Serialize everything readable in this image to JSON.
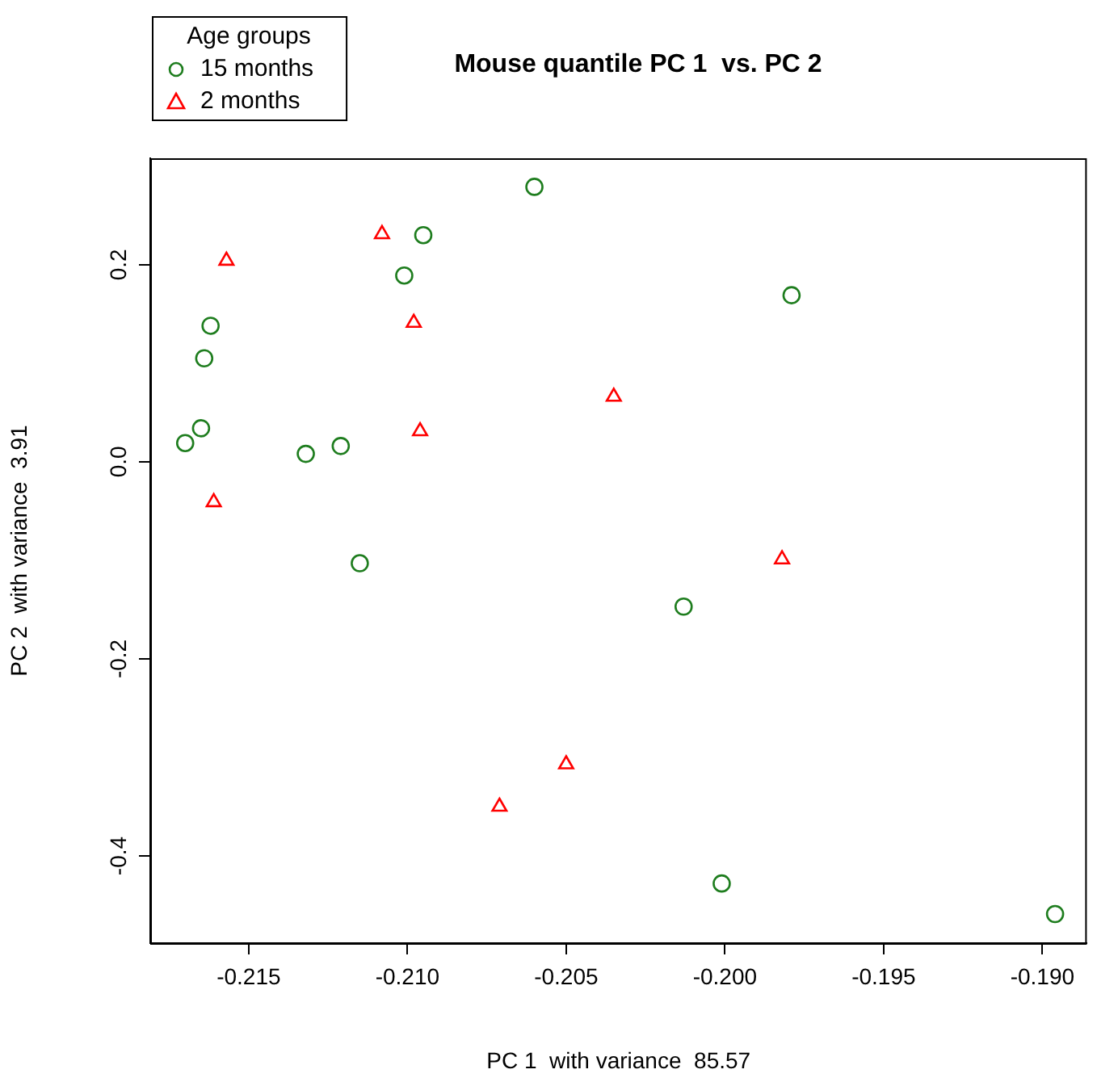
{
  "chart_data": {
    "type": "scatter",
    "title": "Mouse quantile PC 1  vs. PC 2",
    "xlabel": "PC 1  with variance  85.57",
    "ylabel": "PC 2  with variance  3.91",
    "legend_title": "Age groups",
    "legend": "top left",
    "grid": false,
    "xlim": [
      -0.2181,
      -0.1886
    ],
    "ylim": [
      -0.4885,
      0.308
    ],
    "xticks": [
      -0.215,
      {
        "value": -0.21,
        "label": "-0.210"
      },
      -0.205,
      {
        "value": -0.2,
        "label": "-0.200"
      },
      -0.195,
      {
        "value": -0.19,
        "label": "-0.190"
      }
    ],
    "yticks": [
      -0.4,
      -0.2,
      {
        "value": 0,
        "label": "0.0"
      },
      0.2
    ],
    "series": [
      {
        "name": "15 months",
        "color": "#1e7d1e",
        "marker": "circle",
        "x": [
          -0.206,
          -0.2095,
          -0.2101,
          -0.2162,
          -0.2164,
          -0.2165,
          -0.217,
          -0.2132,
          -0.2121,
          -0.1979,
          -0.2115,
          -0.2013,
          -0.2001,
          -0.1896
        ],
        "values": [
          0.279,
          0.23,
          0.189,
          0.138,
          0.105,
          0.034,
          0.019,
          0.008,
          0.016,
          0.169,
          -0.103,
          -0.147,
          -0.428,
          -0.459
        ]
      },
      {
        "name": "2 months",
        "color": "#ff0000",
        "marker": "triangle",
        "x": [
          -0.2108,
          -0.2157,
          -0.2098,
          -0.2035,
          -0.2096,
          -0.2161,
          -0.205,
          -0.2071,
          -0.1982
        ],
        "values": [
          0.231,
          0.204,
          0.141,
          0.066,
          0.031,
          -0.041,
          -0.307,
          -0.35,
          -0.099
        ]
      }
    ]
  }
}
